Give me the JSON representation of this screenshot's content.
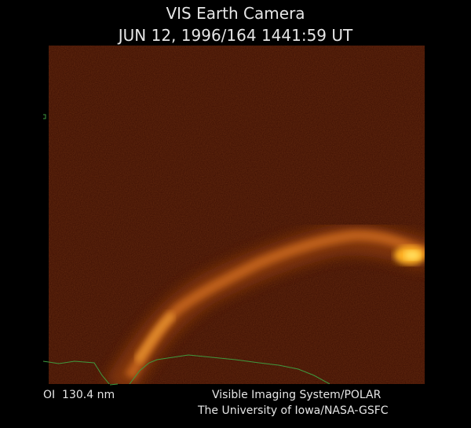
{
  "header": {
    "title": "VIS Earth Camera",
    "timestamp": "JUN 12, 1996/164 1441:59 UT"
  },
  "footer": {
    "filter": "OI  130.4 nm",
    "instrument": "Visible Imaging System/POLAR",
    "institution": "The University of Iowa/NASA-GSFC"
  }
}
